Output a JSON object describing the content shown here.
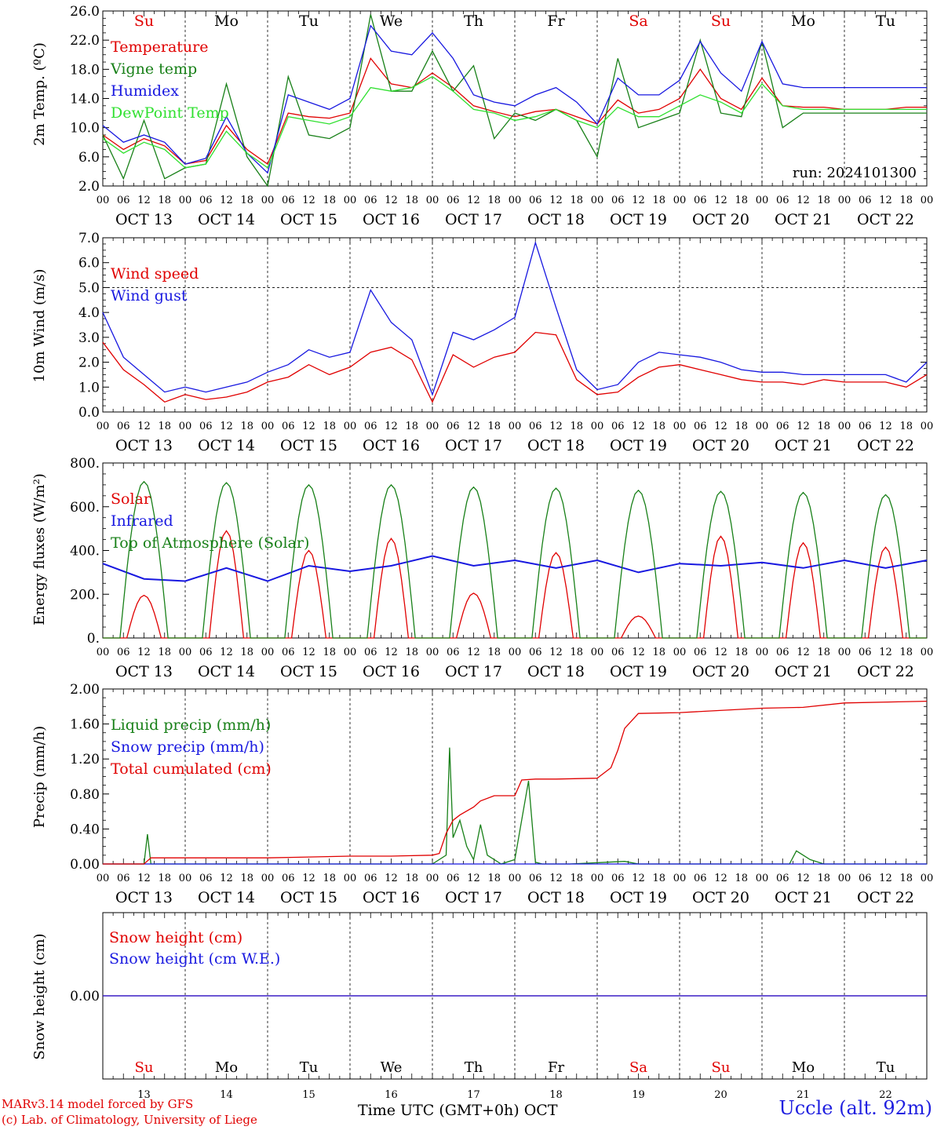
{
  "run_label": "run: 2024101300",
  "station": "Uccle (alt. 92m)",
  "credits": [
    "MARv3.14 model forced by GFS",
    "(c) Lab. of Climatology, University of Liege"
  ],
  "x_axis_title": "Time UTC (GMT+0h) OCT",
  "hour_ticks": [
    "00",
    "06",
    "12",
    "18"
  ],
  "date_labels": [
    "OCT 13",
    "OCT 14",
    "OCT 15",
    "OCT 16",
    "OCT 17",
    "OCT 18",
    "OCT 19",
    "OCT 20",
    "OCT 21",
    "OCT 22"
  ],
  "day_numbers": [
    "13",
    "14",
    "15",
    "16",
    "17",
    "18",
    "19",
    "20",
    "21",
    "22"
  ],
  "weekdays": [
    "Su",
    "Mo",
    "Tu",
    "We",
    "Th",
    "Fr",
    "Sa",
    "Su",
    "Mo",
    "Tu"
  ],
  "weekend_color": "#e00000",
  "chart_data": [
    {
      "type": "line",
      "ylabel": "2m Temp. (ºC)",
      "ylim": [
        2,
        26
      ],
      "yticks": [
        "2.0",
        "6.0",
        "10.0",
        "14.0",
        "18.0",
        "22.0",
        "26.0"
      ],
      "x_unit": "hours since OCT 13 00 UTC",
      "series": [
        {
          "name": "Temperature",
          "color": "#e00000",
          "x": [
            0,
            6,
            12,
            18,
            24,
            30,
            36,
            42,
            48,
            54,
            60,
            66,
            72,
            78,
            84,
            90,
            96,
            102,
            108,
            114,
            120,
            126,
            132,
            138,
            144,
            150,
            156,
            162,
            168,
            174,
            180,
            186,
            192,
            198,
            204,
            210,
            216,
            222,
            228,
            234,
            240
          ],
          "y": [
            9.0,
            7.0,
            8.5,
            7.5,
            5.0,
            5.5,
            10.3,
            7.0,
            5.0,
            12.0,
            11.5,
            11.3,
            12.0,
            19.5,
            16.0,
            15.5,
            17.5,
            15.5,
            13.0,
            12.2,
            11.5,
            12.2,
            12.5,
            11.5,
            10.5,
            13.8,
            12.0,
            12.5,
            14.0,
            18.0,
            14.0,
            12.5,
            16.8,
            13.0,
            12.8,
            12.8,
            12.5,
            12.5,
            12.5,
            12.8,
            12.8
          ]
        },
        {
          "name": "Vigne temp",
          "color": "#188018",
          "x": [
            0,
            6,
            12,
            18,
            24,
            30,
            36,
            42,
            48,
            54,
            60,
            66,
            72,
            78,
            84,
            90,
            96,
            102,
            108,
            114,
            120,
            126,
            132,
            138,
            144,
            150,
            156,
            162,
            168,
            174,
            180,
            186,
            192,
            198,
            204,
            210,
            216,
            222,
            228,
            234,
            240
          ],
          "y": [
            9.0,
            3.0,
            11.0,
            3.0,
            4.5,
            5.0,
            16.0,
            6.0,
            2.0,
            17.0,
            9.0,
            8.5,
            10.0,
            25.5,
            15.0,
            15.0,
            20.5,
            15.0,
            18.5,
            8.5,
            12.0,
            11.0,
            12.5,
            11.0,
            6.0,
            19.5,
            10.0,
            11.0,
            12.0,
            22.0,
            12.0,
            11.5,
            21.8,
            10.0,
            12.0,
            12.0,
            12.0,
            12.0,
            12.0,
            12.0,
            12.0
          ]
        },
        {
          "name": "Humidex",
          "color": "#1818e0",
          "x": [
            0,
            6,
            12,
            18,
            24,
            30,
            36,
            42,
            48,
            54,
            60,
            66,
            72,
            78,
            84,
            90,
            96,
            102,
            108,
            114,
            120,
            126,
            132,
            138,
            144,
            150,
            156,
            162,
            168,
            174,
            180,
            186,
            192,
            198,
            204,
            210,
            216,
            222,
            228,
            234,
            240
          ],
          "y": [
            10.3,
            8.0,
            9.0,
            8.0,
            5.0,
            5.8,
            11.5,
            6.5,
            3.8,
            14.5,
            13.5,
            12.5,
            14.0,
            24.0,
            20.5,
            20.0,
            23.0,
            19.5,
            14.5,
            13.5,
            13.0,
            14.5,
            15.5,
            13.5,
            10.5,
            16.8,
            14.5,
            14.5,
            16.5,
            21.8,
            17.5,
            15.0,
            21.8,
            16.0,
            15.5,
            15.5,
            15.5,
            15.5,
            15.5,
            15.5,
            15.5
          ]
        },
        {
          "name": "DewPoint Temp",
          "color": "#30e030",
          "x": [
            0,
            6,
            12,
            18,
            24,
            30,
            36,
            42,
            48,
            54,
            60,
            66,
            72,
            78,
            84,
            90,
            96,
            102,
            108,
            114,
            120,
            126,
            132,
            138,
            144,
            150,
            156,
            162,
            168,
            174,
            180,
            186,
            192,
            198,
            204,
            210,
            216,
            222,
            228,
            234,
            240
          ],
          "y": [
            8.5,
            6.5,
            8.0,
            7.0,
            4.5,
            5.0,
            9.5,
            6.5,
            4.5,
            11.5,
            11.0,
            10.5,
            11.5,
            15.5,
            15.0,
            15.5,
            17.0,
            15.0,
            12.5,
            12.0,
            11.0,
            11.5,
            12.5,
            11.0,
            10.0,
            12.8,
            11.5,
            11.5,
            13.0,
            14.5,
            13.5,
            12.0,
            16.0,
            13.0,
            12.5,
            12.5,
            12.5,
            12.5,
            12.5,
            12.5,
            12.5
          ]
        }
      ]
    },
    {
      "type": "line",
      "ylabel": "10m Wind (m/s)",
      "ylim": [
        0,
        7
      ],
      "yticks": [
        "0.0",
        "1.0",
        "2.0",
        "3.0",
        "4.0",
        "5.0",
        "6.0",
        "7.0"
      ],
      "reference_line": 5.0,
      "series": [
        {
          "name": "Wind speed",
          "color": "#e00000",
          "x": [
            0,
            6,
            12,
            18,
            24,
            30,
            36,
            42,
            48,
            54,
            60,
            66,
            72,
            78,
            84,
            90,
            96,
            102,
            108,
            114,
            120,
            126,
            132,
            138,
            144,
            150,
            156,
            162,
            168,
            174,
            180,
            186,
            192,
            198,
            204,
            210,
            216,
            222,
            228,
            234,
            240
          ],
          "y": [
            2.8,
            1.7,
            1.1,
            0.4,
            0.7,
            0.5,
            0.6,
            0.8,
            1.2,
            1.4,
            1.9,
            1.5,
            1.8,
            2.4,
            2.6,
            2.1,
            0.4,
            2.3,
            1.8,
            2.2,
            2.4,
            3.2,
            3.1,
            1.3,
            0.7,
            0.8,
            1.4,
            1.8,
            1.9,
            1.7,
            1.5,
            1.3,
            1.2,
            1.2,
            1.1,
            1.3,
            1.2,
            1.2,
            1.2,
            1.0,
            1.5
          ]
        },
        {
          "name": "Wind gust",
          "color": "#1818e0",
          "x": [
            0,
            6,
            12,
            18,
            24,
            30,
            36,
            42,
            48,
            54,
            60,
            66,
            72,
            78,
            84,
            90,
            96,
            102,
            108,
            114,
            120,
            126,
            132,
            138,
            144,
            150,
            156,
            162,
            168,
            174,
            180,
            186,
            192,
            198,
            204,
            210,
            216,
            222,
            228,
            234,
            240
          ],
          "y": [
            4.0,
            2.2,
            1.5,
            0.8,
            1.0,
            0.8,
            1.0,
            1.2,
            1.6,
            1.9,
            2.5,
            2.2,
            2.4,
            4.9,
            3.6,
            2.9,
            0.7,
            3.2,
            2.9,
            3.3,
            3.8,
            6.8,
            4.2,
            1.7,
            0.9,
            1.1,
            2.0,
            2.4,
            2.3,
            2.2,
            2.0,
            1.7,
            1.6,
            1.6,
            1.5,
            1.5,
            1.5,
            1.5,
            1.5,
            1.2,
            2.0
          ]
        }
      ]
    },
    {
      "type": "line",
      "ylabel": "Energy fluxes (W/m²)",
      "ylim": [
        0,
        800
      ],
      "yticks": [
        "0.",
        "200.",
        "400.",
        "600.",
        "800."
      ],
      "series": [
        {
          "name": "Solar",
          "color": "#e00000",
          "peaks": [
            195,
            490,
            400,
            455,
            205,
            390,
            100,
            465,
            435,
            415
          ]
        },
        {
          "name": "Infrared",
          "color": "#1818e0",
          "x": [
            0,
            12,
            24,
            36,
            48,
            60,
            72,
            84,
            96,
            108,
            120,
            132,
            144,
            156,
            168,
            180,
            192,
            204,
            216,
            228,
            240
          ],
          "y": [
            340,
            270,
            260,
            320,
            260,
            330,
            305,
            330,
            375,
            330,
            355,
            320,
            355,
            300,
            340,
            330,
            345,
            320,
            355,
            320,
            355
          ]
        },
        {
          "name": "Top of Atmosphere (Solar)",
          "color": "#188018",
          "peaks": [
            715,
            710,
            700,
            700,
            690,
            685,
            675,
            670,
            665,
            655
          ]
        }
      ]
    },
    {
      "type": "line",
      "ylabel": "Precip (mm/h)",
      "ylim": [
        0,
        2
      ],
      "yticks": [
        "0.00",
        "0.40",
        "0.80",
        "1.20",
        "1.60",
        "2.00"
      ],
      "series": [
        {
          "name": "Liquid precip (mm/h)",
          "color": "#188018",
          "x": [
            0,
            12,
            13,
            14,
            20,
            24,
            60,
            72,
            96,
            100,
            101,
            102,
            104,
            106,
            108,
            110,
            112,
            116,
            120,
            124,
            126,
            128,
            130,
            132,
            136,
            152,
            156,
            200,
            202,
            204,
            206,
            210,
            240
          ],
          "y": [
            0,
            0,
            0.34,
            0,
            0,
            0,
            0,
            0,
            0,
            0.1,
            1.33,
            0.3,
            0.5,
            0.2,
            0.05,
            0.45,
            0.1,
            0,
            0.05,
            0.95,
            0.02,
            0,
            0,
            0,
            0,
            0.03,
            0,
            0,
            0.15,
            0.1,
            0.05,
            0,
            0
          ]
        },
        {
          "name": "Snow precip (mm/h)",
          "color": "#1818e0",
          "x": [
            0,
            240
          ],
          "y": [
            0,
            0
          ]
        },
        {
          "name": "Total cumulated (cm)",
          "color": "#e00000",
          "x": [
            0,
            12,
            14,
            36,
            48,
            60,
            72,
            84,
            96,
            98,
            100,
            102,
            104,
            108,
            110,
            114,
            120,
            122,
            126,
            132,
            144,
            148,
            150,
            152,
            156,
            168,
            192,
            204,
            216,
            240
          ],
          "y": [
            0,
            0,
            0.07,
            0.07,
            0.07,
            0.08,
            0.09,
            0.09,
            0.1,
            0.12,
            0.35,
            0.5,
            0.56,
            0.65,
            0.72,
            0.78,
            0.78,
            0.96,
            0.97,
            0.97,
            0.98,
            1.1,
            1.3,
            1.55,
            1.72,
            1.73,
            1.78,
            1.79,
            1.84,
            1.86
          ]
        }
      ]
    },
    {
      "type": "line",
      "ylabel": "Snow height (cm)",
      "yticks": [
        "0.00"
      ],
      "series": [
        {
          "name": "Snow height (cm)",
          "color": "#e00000",
          "x": [
            0,
            240
          ],
          "y": [
            0,
            0
          ]
        },
        {
          "name": "Snow height (cm W.E.)",
          "color": "#1818e0",
          "x": [
            0,
            240
          ],
          "y": [
            0,
            0
          ]
        }
      ]
    }
  ]
}
